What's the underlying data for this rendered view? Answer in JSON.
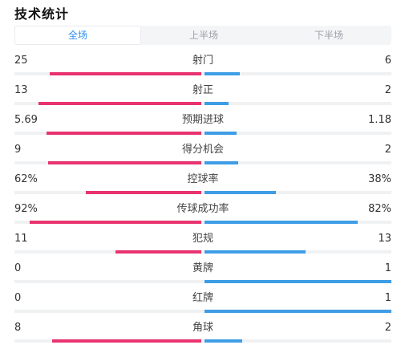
{
  "header": {
    "title": "技术统计"
  },
  "tabs": [
    {
      "label": "全场",
      "active": true
    },
    {
      "label": "上半场",
      "active": false
    },
    {
      "label": "下半场",
      "active": false
    }
  ],
  "colors": {
    "home": "#e8336f",
    "away": "#3e9de6",
    "tab_active": "#2e8ff0"
  },
  "stats": [
    {
      "label": "射门",
      "home": "25",
      "away": "6",
      "home_frac": 0.81,
      "away_frac": 0.19
    },
    {
      "label": "射正",
      "home": "13",
      "away": "2",
      "home_frac": 0.87,
      "away_frac": 0.13
    },
    {
      "label": "预期进球",
      "home": "5.69",
      "away": "1.18",
      "home_frac": 0.83,
      "away_frac": 0.17
    },
    {
      "label": "得分机会",
      "home": "9",
      "away": "2",
      "home_frac": 0.82,
      "away_frac": 0.18
    },
    {
      "label": "控球率",
      "home": "62%",
      "away": "38%",
      "home_frac": 0.62,
      "away_frac": 0.38
    },
    {
      "label": "传球成功率",
      "home": "92%",
      "away": "82%",
      "home_frac": 0.92,
      "away_frac": 0.82
    },
    {
      "label": "犯规",
      "home": "11",
      "away": "13",
      "home_frac": 0.46,
      "away_frac": 0.54
    },
    {
      "label": "黄牌",
      "home": "0",
      "away": "1",
      "home_frac": 0.0,
      "away_frac": 1.0
    },
    {
      "label": "红牌",
      "home": "0",
      "away": "1",
      "home_frac": 0.0,
      "away_frac": 1.0
    },
    {
      "label": "角球",
      "home": "8",
      "away": "2",
      "home_frac": 0.8,
      "away_frac": 0.2
    }
  ]
}
